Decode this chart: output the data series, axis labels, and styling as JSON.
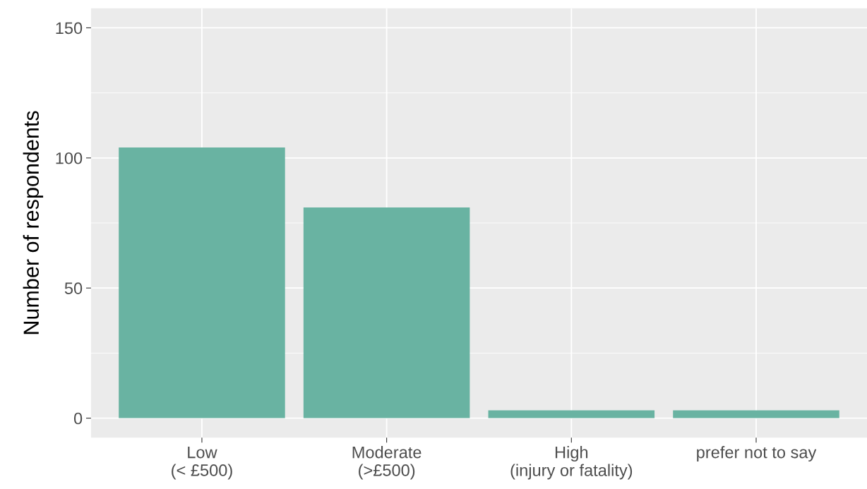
{
  "chart_data": {
    "type": "bar",
    "ylabel": "Number of respondents",
    "categories": [
      "Low\n(< £500)",
      "Moderate\n(>£500)",
      "High\n(injury or fatality)",
      "prefer not to say"
    ],
    "values": [
      104,
      81,
      3,
      3
    ],
    "color": "#69b3a2",
    "ylim": [
      -7.5,
      157.5
    ],
    "yticks": [
      0,
      50,
      100,
      150
    ],
    "grid": true
  }
}
